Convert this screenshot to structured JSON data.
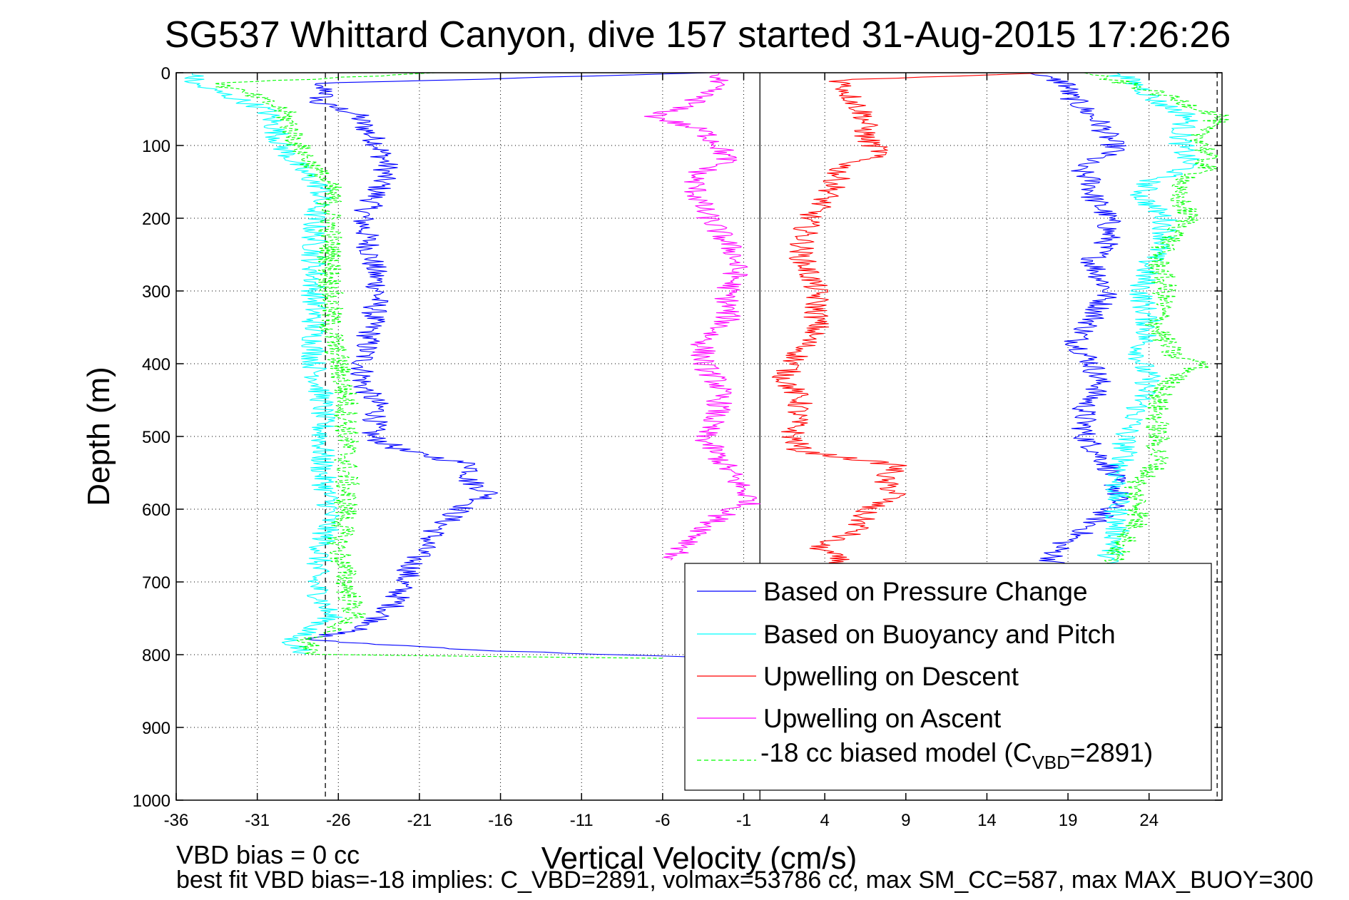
{
  "chart_data": {
    "type": "line",
    "title": "SG537 Whittard Canyon, dive 157 started 31-Aug-2015 17:26:26",
    "xlabel": "Vertical Velocity (cm/s)",
    "ylabel": "Depth (m)",
    "xlim": [
      -36,
      28.5
    ],
    "ylim": [
      0,
      1000
    ],
    "y_reversed": true,
    "grid": true,
    "x_ticks": [
      -36,
      -31,
      -26,
      -21,
      -16,
      -11,
      -6,
      -1,
      4,
      9,
      14,
      19,
      24
    ],
    "x_tick_labels": [
      "-36",
      "-31",
      "-26",
      "-21",
      "-16",
      "-11",
      "-6",
      "-1",
      "4",
      "9",
      "14",
      "19",
      "24"
    ],
    "y_ticks": [
      0,
      100,
      200,
      300,
      400,
      500,
      600,
      700,
      800,
      900,
      1000
    ],
    "y_tick_labels": [
      "0",
      "100",
      "200",
      "300",
      "400",
      "500",
      "600",
      "700",
      "800",
      "900",
      "1000"
    ],
    "reference_lines": [
      {
        "x": -26.8,
        "style": "dashed"
      },
      {
        "x": 0,
        "style": "solid"
      },
      {
        "x": 28.2,
        "style": "dashed"
      }
    ],
    "legend": {
      "position": "bottom-right",
      "entries": [
        {
          "label": "Based on Pressure Change",
          "color": "#0000ff",
          "dash": "solid"
        },
        {
          "label": "Based on Buoyancy and Pitch",
          "color": "#00ffff",
          "dash": "solid"
        },
        {
          "label": "Upwelling on Descent",
          "color": "#ff0000",
          "dash": "solid"
        },
        {
          "label": "Upwelling on Ascent",
          "color": "#ff00ff",
          "dash": "solid"
        },
        {
          "label_prefix": "-18 cc biased model (C",
          "label_sub": "VBD",
          "label_suffix": "=2891)",
          "color": "#00ff00",
          "dash": "dashed"
        }
      ]
    },
    "series": [
      {
        "color": "#0000ff",
        "depth": [
          0,
          15,
          25,
          40,
          55,
          70,
          100,
          130,
          160,
          200,
          250,
          300,
          350,
          400,
          430,
          460,
          500,
          520,
          540,
          560,
          580,
          600,
          630,
          660,
          700,
          730,
          760,
          780,
          795,
          805
        ],
        "values": [
          -3,
          -28,
          -26.5,
          -27.5,
          -25,
          -24.5,
          -23.5,
          -23,
          -23.5,
          -24.5,
          -24,
          -23.5,
          -24,
          -24.5,
          -24.5,
          -23.5,
          -24,
          -22,
          -17.5,
          -18,
          -16.5,
          -18.5,
          -20,
          -21,
          -22,
          -22.5,
          -24,
          -28,
          -16,
          -1.5
        ]
      },
      {
        "color": "#0000ff",
        "depth": [
          0,
          15,
          30,
          50,
          70,
          90,
          105,
          130,
          150,
          170,
          200,
          230,
          260,
          300,
          340,
          370,
          400,
          430,
          460,
          500,
          540,
          570,
          590,
          610,
          630,
          650,
          670,
          700
        ],
        "values": [
          16.5,
          19,
          19,
          20,
          21,
          21.5,
          22,
          19.5,
          20.5,
          20.5,
          21.5,
          21.5,
          20.5,
          21.5,
          20.5,
          19.5,
          20.5,
          21,
          20,
          20,
          21.5,
          22,
          22,
          21,
          20,
          18.5,
          18,
          19
        ]
      },
      {
        "color": "#00ffff",
        "depth": [
          0,
          15,
          30,
          50,
          70,
          100,
          130,
          160,
          200,
          250,
          300,
          350,
          400,
          450,
          500,
          550,
          600,
          650,
          700,
          750,
          780,
          800
        ],
        "values": [
          -35,
          -35,
          -33,
          -30.5,
          -30,
          -29.5,
          -28.5,
          -27,
          -27.5,
          -27.5,
          -27.5,
          -27.5,
          -27.5,
          -27,
          -27,
          -27,
          -26.5,
          -27,
          -27.5,
          -26.5,
          -29,
          -28
        ]
      },
      {
        "color": "#00ffff",
        "depth": [
          0,
          20,
          40,
          60,
          80,
          100,
          130,
          150,
          170,
          200,
          230,
          260,
          300,
          350,
          380,
          400,
          420,
          450,
          480,
          500,
          530,
          560,
          600,
          640,
          670,
          700
        ],
        "values": [
          22,
          23.5,
          24.5,
          26.5,
          26,
          26,
          26.5,
          24,
          23.5,
          25,
          25,
          24,
          23.5,
          24,
          23.5,
          23.5,
          24,
          23.5,
          23,
          22.5,
          22.5,
          22,
          22,
          22,
          21.5,
          21
        ]
      },
      {
        "color": "#ff0000",
        "depth": [
          0,
          10,
          30,
          60,
          90,
          110,
          130,
          160,
          200,
          250,
          300,
          350,
          400,
          420,
          450,
          500,
          520,
          540,
          560,
          580,
          600,
          630,
          650,
          680
        ],
        "values": [
          18,
          5,
          5.5,
          6.5,
          6.5,
          7.5,
          5,
          4.5,
          3,
          2.5,
          3.5,
          3.5,
          2,
          1.5,
          2.5,
          2,
          2.5,
          8.5,
          7.5,
          8.5,
          6.5,
          6,
          3.5,
          5.5
        ]
      },
      {
        "color": "#ff00ff",
        "depth": [
          0,
          20,
          40,
          60,
          80,
          100,
          120,
          140,
          160,
          190,
          220,
          250,
          280,
          300,
          340,
          370,
          400,
          430,
          460,
          500,
          530,
          560,
          590,
          610,
          640,
          670
        ],
        "values": [
          -2.5,
          -3,
          -4,
          -6.5,
          -3.5,
          -2.5,
          -2,
          -4,
          -4,
          -3.5,
          -2.5,
          -1.5,
          -1.5,
          -2,
          -2,
          -3.5,
          -3.5,
          -2.5,
          -2.5,
          -3.5,
          -2.5,
          -1.5,
          -0.5,
          -2.5,
          -4,
          -5.5
        ]
      },
      {
        "color": "#00ff00",
        "dash": "dashed",
        "depth": [
          0,
          15,
          30,
          50,
          70,
          100,
          130,
          160,
          200,
          250,
          300,
          350,
          400,
          450,
          500,
          550,
          600,
          650,
          700,
          750,
          780,
          800,
          805
        ],
        "values": [
          -20,
          -33.5,
          -31.5,
          -29.5,
          -29,
          -28.5,
          -27.5,
          -26.5,
          -26.5,
          -26.5,
          -26.5,
          -26.5,
          -26,
          -25.5,
          -25.5,
          -25.5,
          -25.5,
          -26,
          -25.5,
          -25,
          -28,
          -27.5,
          -6
        ]
      },
      {
        "color": "#00ff00",
        "dash": "dashed",
        "depth": [
          0,
          20,
          40,
          60,
          80,
          100,
          130,
          160,
          200,
          250,
          300,
          350,
          390,
          400,
          420,
          450,
          500,
          540,
          570,
          600,
          630,
          660,
          690,
          700
        ],
        "values": [
          20,
          23.5,
          26,
          28.5,
          27,
          27.5,
          27.5,
          25.5,
          26.5,
          24.5,
          25,
          24.5,
          25.5,
          27.5,
          25.5,
          24.5,
          24.5,
          24.5,
          23,
          23.5,
          23,
          22,
          21.5,
          20.5
        ]
      }
    ]
  },
  "footer": {
    "line1": "VBD bias = 0 cc",
    "line2": "best fit VBD bias=-18 implies: C_VBD=2891, volmax=53786 cc, max SM_CC=587, max MAX_BUOY=300"
  }
}
